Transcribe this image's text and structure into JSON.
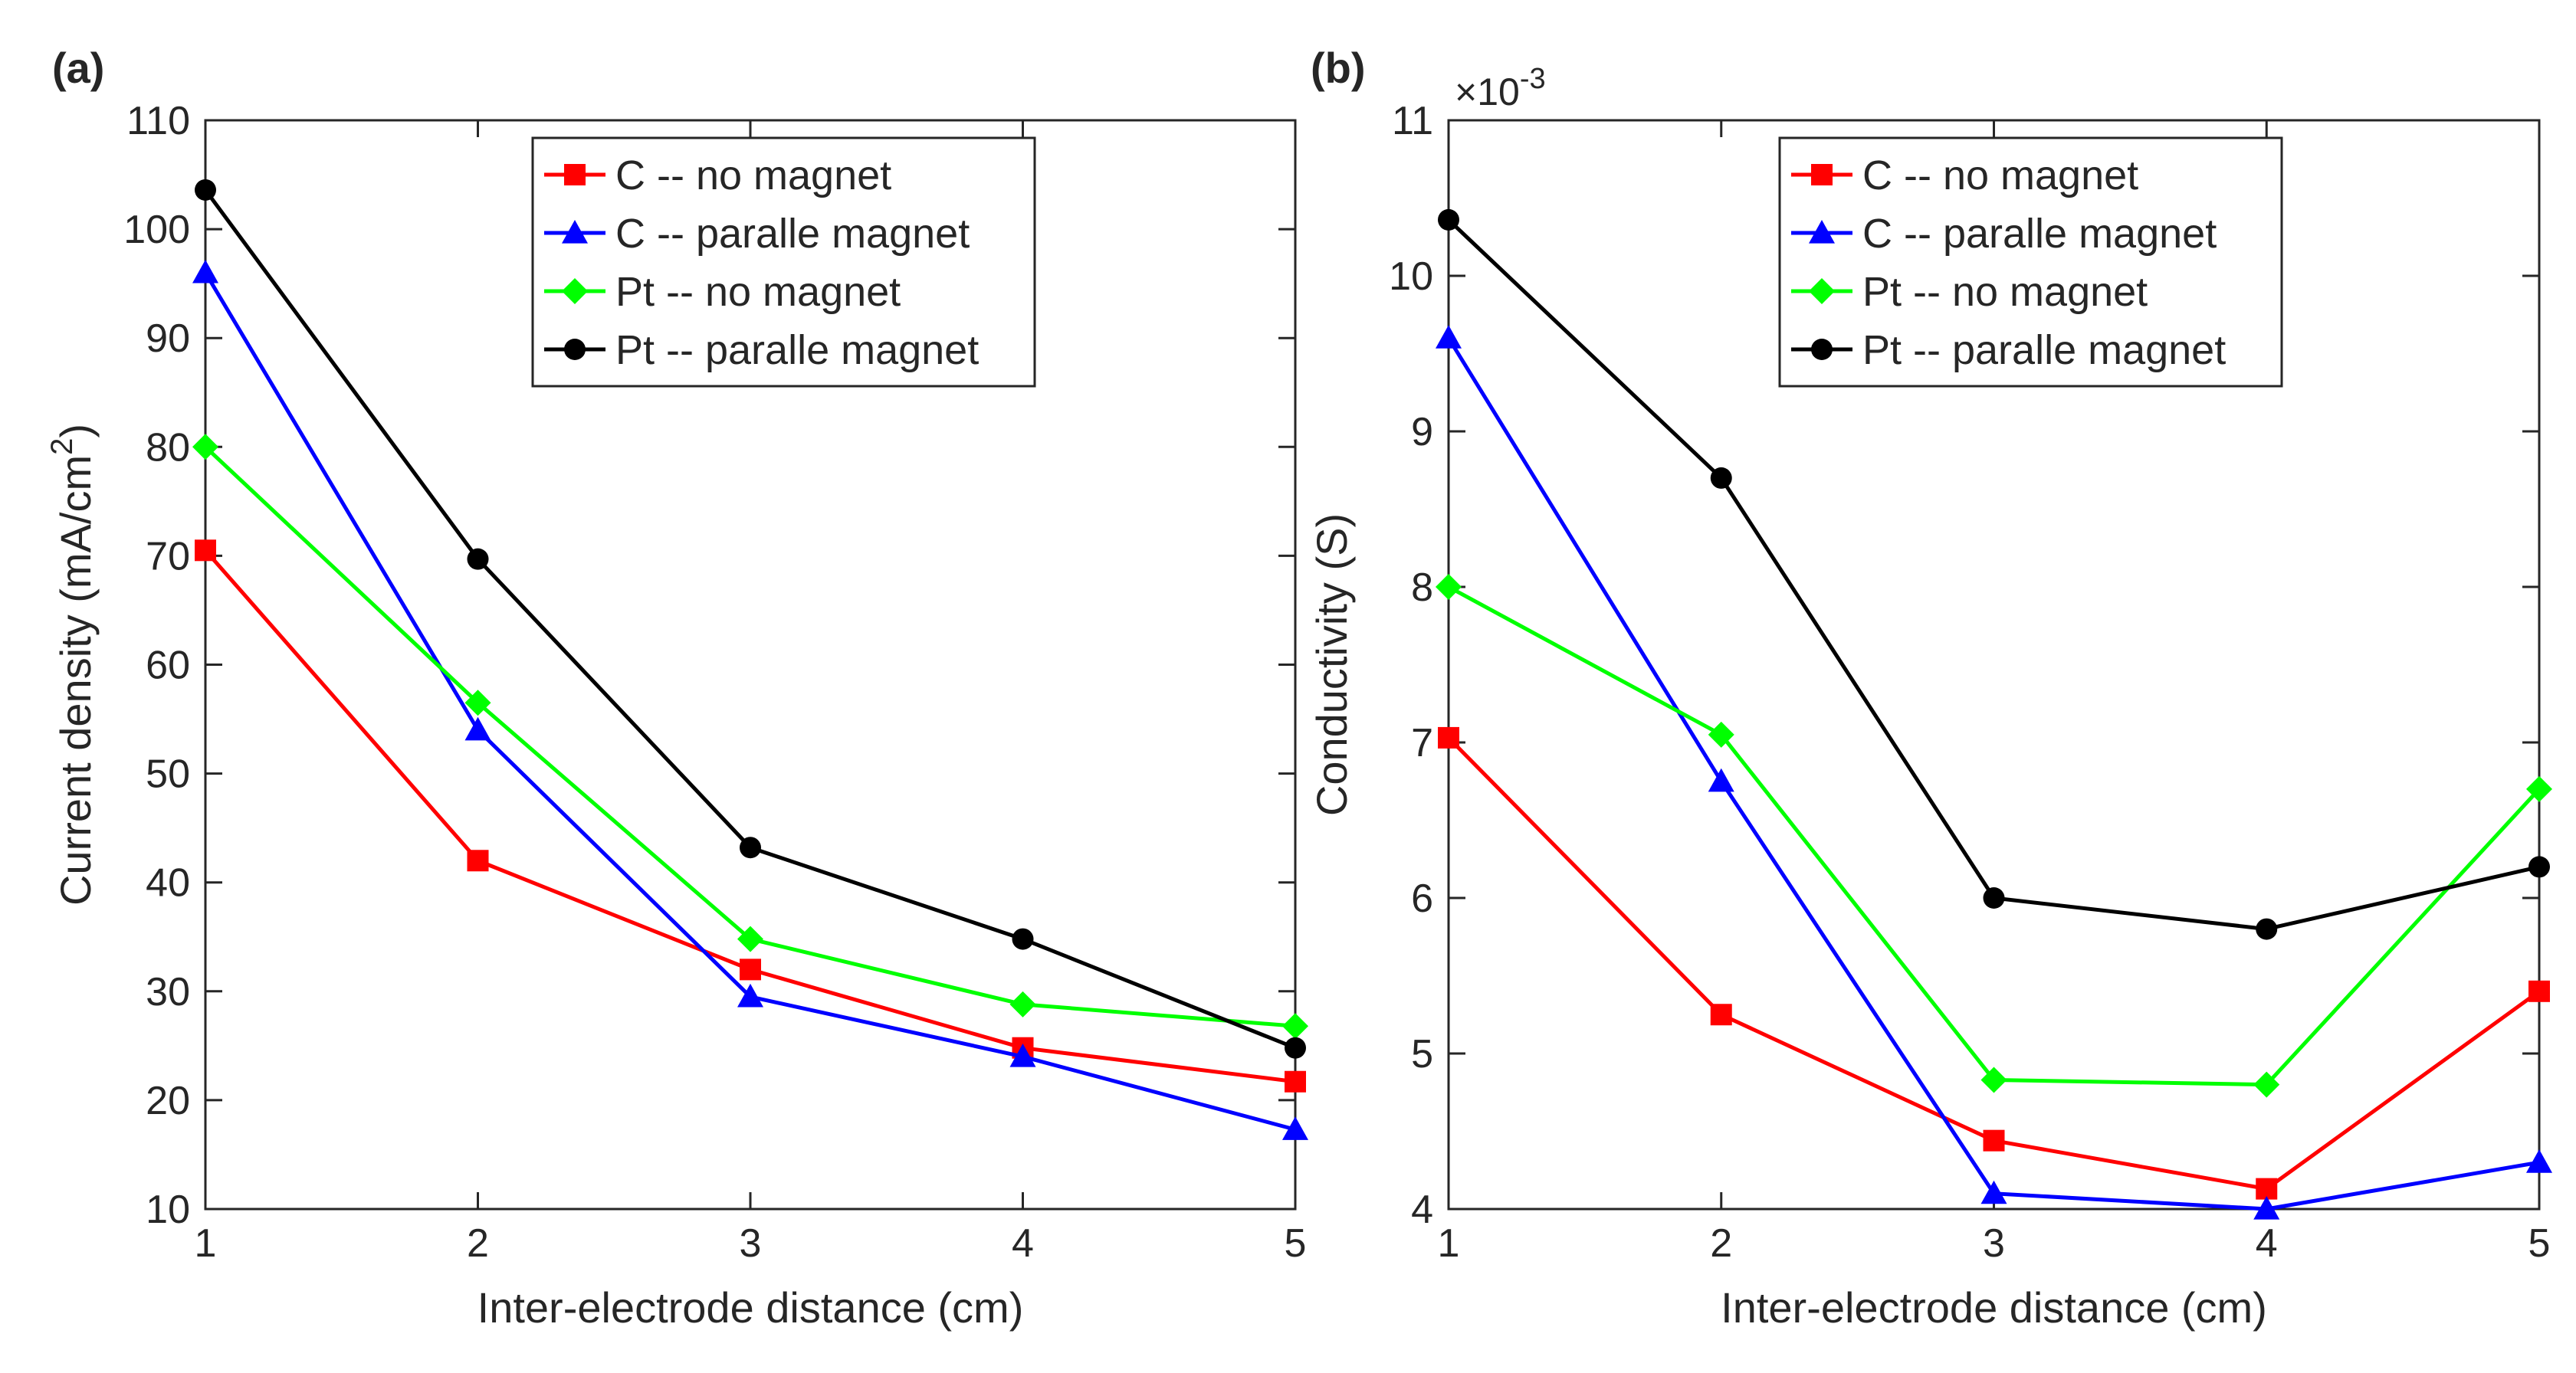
{
  "chart_data": [
    {
      "type": "line",
      "panel_label": "(a)",
      "title": "",
      "xlabel": "Inter-electrode distance (cm)",
      "ylabel": "Current density (mA/cm",
      "ylabel_sup": "2",
      "ylabel_end": ")",
      "xlim": [
        1,
        5
      ],
      "ylim": [
        10,
        110
      ],
      "xticks": [
        "1",
        "2",
        "3",
        "4",
        "5"
      ],
      "yticks": [
        "10",
        "20",
        "30",
        "40",
        "50",
        "60",
        "70",
        "80",
        "90",
        "100",
        "110"
      ],
      "exponent": "",
      "grid": false,
      "legend_position": "top-right",
      "x": [
        1,
        2,
        3,
        4,
        5
      ],
      "series": [
        {
          "name": "C -- no magnet",
          "color": "#ff0000",
          "marker": "square",
          "values": [
            70.5,
            42,
            32,
            24.8,
            21.7
          ]
        },
        {
          "name": "C -- paralle magnet",
          "color": "#0000ff",
          "marker": "triangle",
          "values": [
            96,
            54,
            29.5,
            24,
            17.3
          ]
        },
        {
          "name": "Pt -- no magnet",
          "color": "#00ff00",
          "marker": "diamond",
          "values": [
            80,
            56.5,
            34.8,
            28.8,
            26.8
          ]
        },
        {
          "name": "Pt -- paralle magnet",
          "color": "#000000",
          "marker": "circle",
          "values": [
            103.6,
            69.7,
            43.2,
            34.8,
            24.8
          ]
        }
      ]
    },
    {
      "type": "line",
      "panel_label": "(b)",
      "title": "",
      "xlabel": "Inter-electrode distance (cm)",
      "ylabel": "Conductivity (S)",
      "ylabel_sup": "",
      "ylabel_end": "",
      "xlim": [
        1,
        5
      ],
      "ylim": [
        4,
        11
      ],
      "xticks": [
        "1",
        "2",
        "3",
        "4",
        "5"
      ],
      "yticks": [
        "4",
        "5",
        "6",
        "7",
        "8",
        "9",
        "10",
        "11"
      ],
      "exponent": "×10",
      "exponent_sup": "-3",
      "grid": false,
      "legend_position": "top-right",
      "x": [
        1,
        2,
        3,
        4,
        5
      ],
      "series": [
        {
          "name": "C -- no magnet",
          "color": "#ff0000",
          "marker": "square",
          "values": [
            7.03,
            5.25,
            4.44,
            4.13,
            5.4
          ]
        },
        {
          "name": "C -- paralle magnet",
          "color": "#0000ff",
          "marker": "triangle",
          "values": [
            9.6,
            6.75,
            4.1,
            4.0,
            4.3
          ]
        },
        {
          "name": "Pt -- no magnet",
          "color": "#00ff00",
          "marker": "diamond",
          "values": [
            8.0,
            7.05,
            4.83,
            4.8,
            6.7
          ]
        },
        {
          "name": "Pt -- paralle magnet",
          "color": "#000000",
          "marker": "circle",
          "values": [
            10.36,
            8.7,
            6.0,
            5.8,
            6.2
          ]
        }
      ]
    }
  ]
}
